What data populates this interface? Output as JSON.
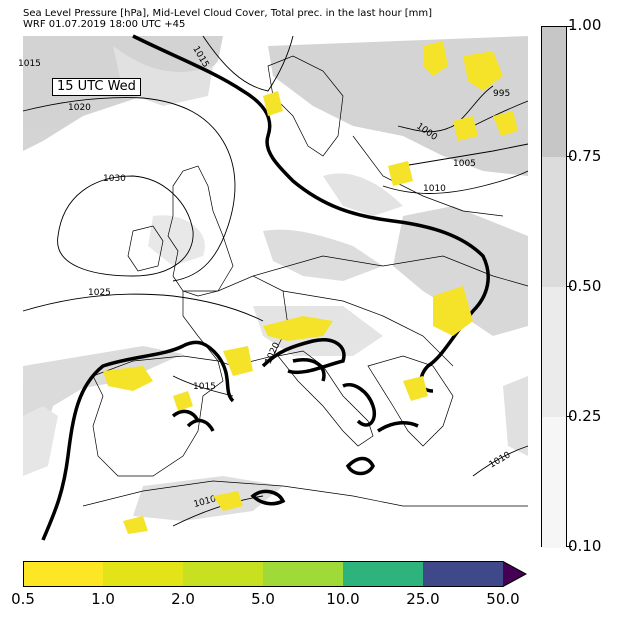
{
  "header": {
    "title_line1": "Sea Level Pressure [hPa], Mid-Level Cloud Cover, Total prec. in the last hour [mm]",
    "title_line2": "WRF 01.07.2019 18:00 UTC +45"
  },
  "map": {
    "time_label": "15 UTC Wed",
    "isobar_labels": [
      "1015",
      "1020",
      "1030",
      "1025",
      "1015",
      "1020",
      "1015",
      "1010",
      "1000",
      "995",
      "1005",
      "1010",
      "1010"
    ],
    "colors": {
      "coast": "#000000",
      "isobar": "#000000",
      "cloud_light": "#e6e6e6",
      "cloud_dark": "#c8c8c8",
      "precip": "#f5e32a"
    }
  },
  "cloud_colorbar": {
    "ticks": [
      "1.00",
      "0.75",
      "0.50",
      "0.25",
      "0.10"
    ],
    "colors": [
      "#c6c6c6",
      "#dcdcdc",
      "#ebebeb",
      "#f6f6f6"
    ]
  },
  "precip_colorbar": {
    "ticks": [
      "0.5",
      "1.0",
      "2.0",
      "5.0",
      "10.0",
      "25.0",
      "50.0"
    ],
    "colors": [
      "#fde725",
      "#e3e418",
      "#c7e020",
      "#a0da39",
      "#2eb37c",
      "#3f4889",
      "#440154"
    ]
  }
}
